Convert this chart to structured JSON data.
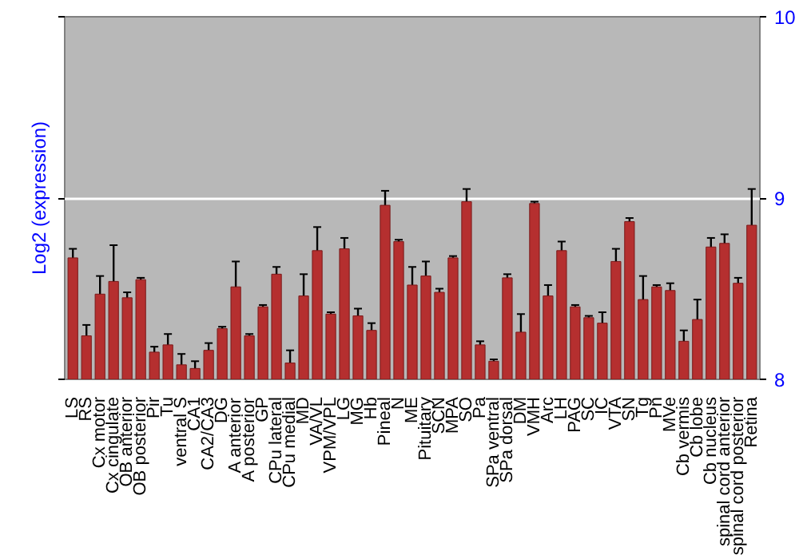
{
  "chart_data": {
    "type": "bar",
    "ylabel": "Log2 (expression)",
    "categories": [
      "LS",
      "RS",
      "Cx motor",
      "Cx cingulate",
      "OB anterior",
      "OB posterior",
      "Pir",
      "Tu",
      "ventral S",
      "CA1",
      "CA2/CA3",
      "DG",
      "A anterior",
      "A posterior",
      "GP",
      "CPu lateral",
      "CPu medial",
      "MD",
      "VA/VL",
      "VPM/VPL",
      "LG",
      "MG",
      "Hb",
      "Pineal",
      "N",
      "ME",
      "Pituitary",
      "SCN",
      "MPA",
      "SO",
      "Pa",
      "SPa ventral",
      "SPa dorsal",
      "DM",
      "VMH",
      "Arc",
      "LH",
      "PAG",
      "SC",
      "IC",
      "VTA",
      "SN",
      "Tg",
      "Pn",
      "MVe",
      "Cb vermis",
      "Cb lobe",
      "Cb nucleus",
      "spinal cord anterior",
      "spinal cord posterior",
      "Retina"
    ],
    "values": [
      8.67,
      8.24,
      8.47,
      8.54,
      8.45,
      8.55,
      8.15,
      8.19,
      8.08,
      8.06,
      8.16,
      8.28,
      8.51,
      8.24,
      8.4,
      8.58,
      8.09,
      8.46,
      8.71,
      8.36,
      8.72,
      8.35,
      8.27,
      8.96,
      8.76,
      8.52,
      8.57,
      8.48,
      8.67,
      8.98,
      8.19,
      8.1,
      8.56,
      8.26,
      8.97,
      8.46,
      8.71,
      8.4,
      8.34,
      8.31,
      8.65,
      8.87,
      8.44,
      8.51,
      8.49,
      8.21,
      8.33,
      8.73,
      8.75,
      8.53,
      8.85
    ],
    "errors": [
      0.05,
      0.06,
      0.1,
      0.2,
      0.03,
      0.01,
      0.03,
      0.06,
      0.06,
      0.04,
      0.04,
      0.01,
      0.14,
      0.01,
      0.01,
      0.04,
      0.07,
      0.12,
      0.13,
      0.01,
      0.06,
      0.04,
      0.04,
      0.08,
      0.01,
      0.1,
      0.08,
      0.02,
      0.01,
      0.07,
      0.02,
      0.01,
      0.02,
      0.1,
      0.01,
      0.06,
      0.05,
      0.01,
      0.01,
      0.06,
      0.07,
      0.02,
      0.13,
      0.01,
      0.04,
      0.06,
      0.11,
      0.05,
      0.05,
      0.03,
      0.2
    ],
    "color": "#b52f2f",
    "ylim": [
      8,
      10
    ],
    "yticks": [
      8,
      9,
      10
    ],
    "grid": "y"
  }
}
